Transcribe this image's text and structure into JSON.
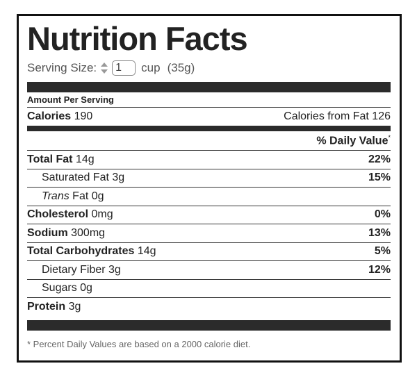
{
  "title": "Nutrition Facts",
  "serving": {
    "label": "Serving Size:",
    "quantity": "1",
    "unit": "cup",
    "weight": "(35g)"
  },
  "amount_per_serving": "Amount Per Serving",
  "calories": {
    "label": "Calories",
    "value": 190,
    "from_fat_label": "Calories from Fat",
    "from_fat_value": 126
  },
  "daily_value_header": {
    "label": "% Daily Value",
    "mark": "*"
  },
  "rows": [
    {
      "label": "Total Fat",
      "amount": "14g",
      "daily_value": "22%",
      "bold": true,
      "indent": false
    },
    {
      "label": "Saturated Fat",
      "amount": "3g",
      "daily_value": "15%",
      "bold": false,
      "indent": true
    },
    {
      "label_italic": "Trans",
      "label": "Fat",
      "amount": "0g",
      "bold": false,
      "indent": true
    },
    {
      "label": "Cholesterol",
      "amount": "0mg",
      "daily_value": "0%",
      "bold": true,
      "indent": false
    },
    {
      "label": "Sodium",
      "amount": "300mg",
      "daily_value": "13%",
      "bold": true,
      "indent": false
    },
    {
      "label": "Total Carbohydrates",
      "amount": "14g",
      "daily_value": "5%",
      "bold": true,
      "indent": false
    },
    {
      "label": "Dietary Fiber",
      "amount": "3g",
      "daily_value": "12%",
      "bold": false,
      "indent": true
    },
    {
      "label": "Sugars",
      "amount": "0g",
      "bold": false,
      "indent": true
    },
    {
      "label": "Protein",
      "amount": "3g",
      "bold": true,
      "indent": false
    }
  ],
  "footnote": "* Percent Daily Values are based on a 2000 calorie diet."
}
